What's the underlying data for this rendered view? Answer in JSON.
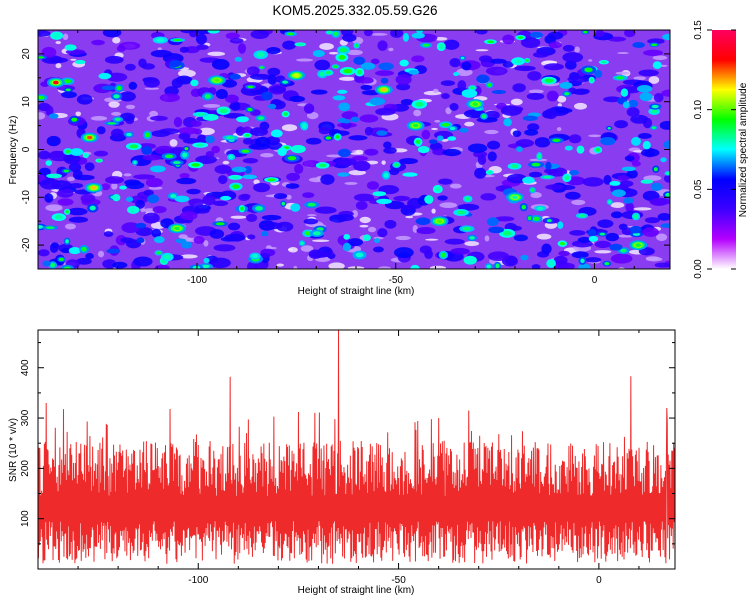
{
  "title": "KOM5.2025.332.05.59.G26",
  "colors": {
    "axis": "#000000",
    "snr_line": "#ee2a2a",
    "spectrogram_base": "#8a3cf0"
  },
  "chart_data": [
    {
      "type": "heatmap",
      "name": "spectrogram",
      "xlabel": "Height of straight line (km)",
      "ylabel": "Frequency (Hz)",
      "xlim": [
        -140,
        19
      ],
      "ylim": [
        -25,
        25
      ],
      "xticks": [
        -100,
        -50,
        0
      ],
      "yticks": [
        -20,
        -10,
        0,
        10,
        20
      ],
      "colorbar": {
        "label": "Normalized spectral amplitude",
        "range": [
          0.0,
          0.15
        ],
        "ticks": [
          "0.00",
          "0.05",
          "0.10",
          "0.15"
        ],
        "colormap": [
          "#ffffff",
          "#b400ff",
          "#3c00ff",
          "#0000ff",
          "#00ffff",
          "#00ff00",
          "#ffff00",
          "#ff0000",
          "#ff0060"
        ]
      },
      "peaks": [
        {
          "x": -135.5,
          "y": 14,
          "value": 0.15
        },
        {
          "x": -127,
          "y": 2.5,
          "value": 0.14
        },
        {
          "x": -126,
          "y": -8,
          "value": 0.13
        },
        {
          "x": -53,
          "y": 12.5,
          "value": 0.13
        },
        {
          "x": -75,
          "y": 15.5,
          "value": 0.12
        },
        {
          "x": -95,
          "y": 14.5,
          "value": 0.11
        },
        {
          "x": -39,
          "y": -15,
          "value": 0.11
        },
        {
          "x": -30,
          "y": 9.5,
          "value": 0.1
        },
        {
          "x": -105,
          "y": -16.5,
          "value": 0.1
        },
        {
          "x": 11,
          "y": -20,
          "value": 0.1
        },
        {
          "x": -45,
          "y": 5,
          "value": 0.1
        },
        {
          "x": -20,
          "y": -10,
          "value": 0.09
        }
      ]
    },
    {
      "type": "line",
      "name": "snr",
      "xlabel": "Height of straight line (km)",
      "ylabel": "SNR (10 * v/v)",
      "xlim": [
        -140,
        19
      ],
      "ylim": [
        0,
        475
      ],
      "xticks": [
        -100,
        -50,
        0
      ],
      "yticks": [
        100,
        200,
        300,
        400
      ],
      "mean": 120,
      "spikes": [
        {
          "x": -65,
          "y": 475
        },
        {
          "x": -92,
          "y": 382
        },
        {
          "x": 8,
          "y": 383
        },
        {
          "x": -107,
          "y": 318
        },
        {
          "x": -138,
          "y": 330
        },
        {
          "x": 17,
          "y": 320
        },
        {
          "x": -75,
          "y": 312
        },
        {
          "x": -40,
          "y": 300
        },
        {
          "x": -88,
          "y": 270
        },
        {
          "x": -25,
          "y": 268
        }
      ]
    }
  ]
}
